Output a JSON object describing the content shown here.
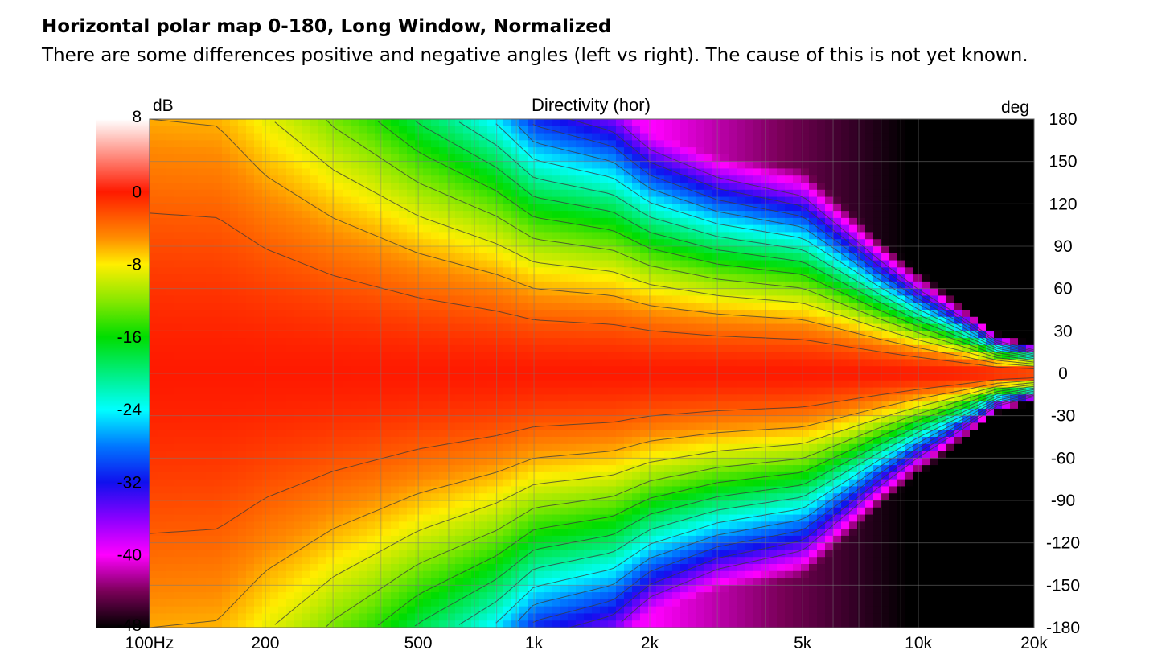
{
  "heading": "Horizontal polar map 0-180, Long Window, Normalized",
  "subheading": "There are some differences positive and negative angles (left vs right).  The cause of this is not yet known.",
  "chart_data": {
    "type": "heatmap",
    "title": "Directivity (hor)",
    "colorbar_unit": "dB",
    "y_unit": "deg",
    "x_scale": "log",
    "xlim": [
      100,
      20000
    ],
    "ylim": [
      -180,
      180
    ],
    "clim": [
      -48,
      8
    ],
    "x_ticks": [
      {
        "value": 100,
        "label": "100Hz"
      },
      {
        "value": 200,
        "label": "200"
      },
      {
        "value": 500,
        "label": "500"
      },
      {
        "value": 1000,
        "label": "1k"
      },
      {
        "value": 2000,
        "label": "2k"
      },
      {
        "value": 5000,
        "label": "5k"
      },
      {
        "value": 10000,
        "label": "10k"
      },
      {
        "value": 20000,
        "label": "20k"
      }
    ],
    "y_ticks": [
      180,
      150,
      120,
      90,
      60,
      30,
      0,
      -30,
      -60,
      -90,
      -120,
      -150,
      -180
    ],
    "colorbar_ticks": [
      8,
      0,
      -8,
      -16,
      -24,
      -32,
      -40,
      -48
    ],
    "colormap": [
      {
        "db": 8,
        "color": "#ffffff"
      },
      {
        "db": 0,
        "color": "#ff1a00"
      },
      {
        "db": -5,
        "color": "#ff8a00"
      },
      {
        "db": -8,
        "color": "#ffee00"
      },
      {
        "db": -12,
        "color": "#88e800"
      },
      {
        "db": -16,
        "color": "#00dd00"
      },
      {
        "db": -24,
        "color": "#00ffff"
      },
      {
        "db": -28,
        "color": "#0077ff"
      },
      {
        "db": -32,
        "color": "#1010ee"
      },
      {
        "db": -36,
        "color": "#8a00ff"
      },
      {
        "db": -40,
        "color": "#ff00ff"
      },
      {
        "db": -44,
        "color": "#7a0058"
      },
      {
        "db": -48,
        "color": "#000000"
      }
    ],
    "contour_step_db": 3,
    "beamwidth_-6dB_deg": [
      {
        "freq": 100,
        "angle": 180
      },
      {
        "freq": 150,
        "angle": 175
      },
      {
        "freq": 200,
        "angle": 140
      },
      {
        "freq": 300,
        "angle": 110
      },
      {
        "freq": 500,
        "angle": 85
      },
      {
        "freq": 800,
        "angle": 70
      },
      {
        "freq": 1000,
        "angle": 60
      },
      {
        "freq": 1600,
        "angle": 55
      },
      {
        "freq": 2000,
        "angle": 48
      },
      {
        "freq": 3000,
        "angle": 42
      },
      {
        "freq": 5000,
        "angle": 38
      },
      {
        "freq": 8000,
        "angle": 24
      },
      {
        "freq": 10000,
        "angle": 18
      },
      {
        "freq": 13000,
        "angle": 12
      },
      {
        "freq": 16000,
        "angle": 7
      },
      {
        "freq": 20000,
        "angle": 5
      }
    ]
  }
}
